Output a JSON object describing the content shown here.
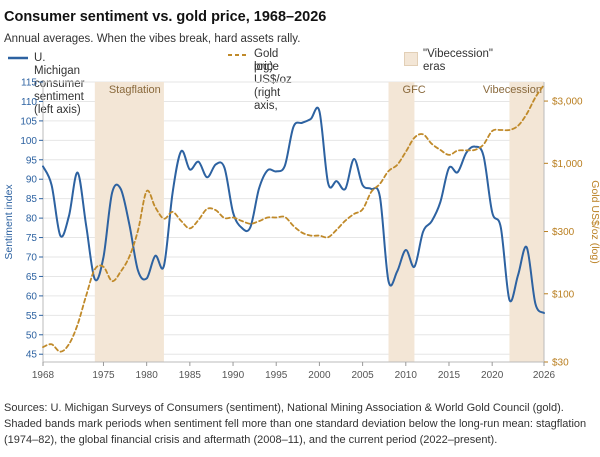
{
  "title": "Consumer sentiment vs. gold price, 1968–2026",
  "subtitle": "Annual averages. When the vibes break, hard assets rally.",
  "legend": {
    "sentiment": "U. Michigan consumer sentiment (left axis)",
    "gold_line1": "Gold price US$/oz (right axis,",
    "gold_line2": "log)",
    "band_line1": "\"Vibecession\"",
    "band_line2": "eras"
  },
  "colors": {
    "sentiment": "#2d62a1",
    "gold": "#c08a2a",
    "band": "#f3e6d6",
    "axis_left": "#2d62a1",
    "axis_right": "#b97e1f",
    "grid": "#e6e6e6"
  },
  "note": "Sources: U. Michigan Surveys of Consumers (sentiment), National Mining Association & World Gold Council (gold). Shaded bands mark periods when sentiment fell more than one standard deviation below the long-run mean: stagflation (1974–82), the global financial crisis and aftermath (2008–11), and the current period (2022–present).",
  "chart_data": {
    "type": "line",
    "xlim": [
      1968,
      2026
    ],
    "x_ticks": [
      1968,
      1975,
      1980,
      1985,
      1990,
      1995,
      2000,
      2005,
      2010,
      2015,
      2020,
      2026
    ],
    "y_left": {
      "label": "Sentiment index",
      "lim": [
        43,
        115
      ],
      "ticks": [
        45,
        50,
        55,
        60,
        65,
        70,
        75,
        80,
        85,
        90,
        95,
        100,
        105,
        110,
        115
      ]
    },
    "y_right": {
      "label": "Gold US$/oz (log)",
      "lim": [
        30,
        4200
      ],
      "scale": "log",
      "ticks": [
        30,
        100,
        300,
        1000,
        3000
      ],
      "tick_labels": [
        "$30",
        "$100",
        "$300",
        "$1,000",
        "$3,000"
      ]
    },
    "bands": [
      {
        "label": "Stagflation",
        "from": 1974,
        "to": 1982
      },
      {
        "label": "GFC",
        "from": 2008,
        "to": 2011
      },
      {
        "label": "Vibecession",
        "from": 2022,
        "to": 2026
      }
    ],
    "series": [
      {
        "name": "U. Michigan consumer sentiment (left axis)",
        "axis": "left",
        "style": "solid",
        "x": [
          1968,
          1969,
          1970,
          1971,
          1972,
          1973,
          1974,
          1975,
          1976,
          1977,
          1978,
          1979,
          1980,
          1981,
          1982,
          1983,
          1984,
          1985,
          1986,
          1987,
          1988,
          1989,
          1990,
          1991,
          1992,
          1993,
          1994,
          1995,
          1996,
          1997,
          1998,
          1999,
          2000,
          2001,
          2002,
          2003,
          2004,
          2005,
          2006,
          2007,
          2008,
          2009,
          2010,
          2011,
          2012,
          2013,
          2014,
          2015,
          2016,
          2017,
          2018,
          2019,
          2020,
          2021,
          2022,
          2023,
          2024,
          2025,
          2026
        ],
        "y": [
          93.3,
          88.5,
          75.5,
          80.5,
          91.7,
          78.0,
          64.3,
          70.0,
          86.5,
          87.5,
          78.3,
          66.5,
          64.5,
          70.3,
          67.7,
          86.5,
          97.2,
          92.5,
          94.5,
          90.5,
          93.8,
          93.0,
          81.5,
          77.5,
          77.6,
          87.5,
          92.3,
          92.0,
          93.5,
          103.5,
          104.5,
          105.5,
          107.5,
          89.0,
          89.5,
          87.5,
          95.2,
          88.5,
          87.5,
          85.5,
          63.8,
          66.3,
          71.8,
          67.5,
          76.5,
          79.2,
          84.1,
          92.9,
          91.8,
          96.8,
          98.4,
          96.0,
          81.5,
          77.6,
          59.0,
          65.4,
          72.5,
          58.0,
          55.6
        ]
      },
      {
        "name": "Gold price US$/oz (right axis, log)",
        "axis": "right",
        "style": "dashed",
        "x": [
          1968,
          1969,
          1970,
          1971,
          1972,
          1973,
          1974,
          1975,
          1976,
          1977,
          1978,
          1979,
          1980,
          1981,
          1982,
          1983,
          1984,
          1985,
          1986,
          1987,
          1988,
          1989,
          1990,
          1991,
          1992,
          1993,
          1994,
          1995,
          1996,
          1997,
          1998,
          1999,
          2000,
          2001,
          2002,
          2003,
          2004,
          2005,
          2006,
          2007,
          2008,
          2009,
          2010,
          2011,
          2012,
          2013,
          2014,
          2015,
          2016,
          2017,
          2018,
          2019,
          2020,
          2021,
          2022,
          2023,
          2024,
          2025,
          2026
        ],
        "y": [
          39,
          41,
          36,
          41,
          58,
          97,
          154,
          161,
          125,
          148,
          193,
          306,
          612,
          460,
          376,
          424,
          361,
          317,
          368,
          447,
          437,
          381,
          384,
          362,
          344,
          360,
          384,
          384,
          388,
          331,
          294,
          279,
          279,
          271,
          310,
          363,
          409,
          444,
          603,
          695,
          872,
          972,
          1225,
          1572,
          1669,
          1411,
          1266,
          1160,
          1251,
          1257,
          1268,
          1393,
          1770,
          1799,
          1800,
          1943,
          2386,
          3200,
          4000
        ]
      }
    ]
  }
}
